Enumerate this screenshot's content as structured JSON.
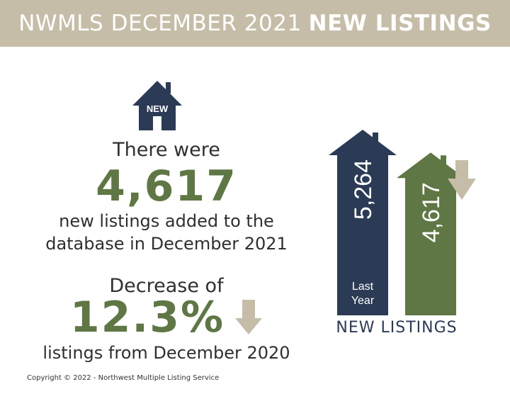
{
  "banner": {
    "light": "NWMLS DECEMBER 2021",
    "bold": "NEW LISTINGS"
  },
  "house_icon": {
    "name": "house-icon",
    "label": "NEW"
  },
  "stats": {
    "there_were": "There were",
    "count": "4,617",
    "line1": "new listings added to the",
    "line2": "database in December 2021",
    "decrease_label": "Decrease of",
    "percent": "12.3%",
    "line3": "listings from December 2020"
  },
  "copyright": "Copyright © 2022 - Northwest Multiple Listing Service",
  "colors": {
    "banner": "#c6bda8",
    "navy": "#2b3a55",
    "green": "#5f7744",
    "tan": "#c6bda8"
  },
  "chart_data": {
    "type": "bar",
    "title": "NEW LISTINGS",
    "categories": [
      "Last Year",
      ""
    ],
    "values": [
      5264,
      4617
    ],
    "value_labels": [
      "5,264",
      "4,617"
    ],
    "bar_labels": [
      "Last\nYear",
      ""
    ],
    "ylim": [
      0,
      5264
    ]
  }
}
